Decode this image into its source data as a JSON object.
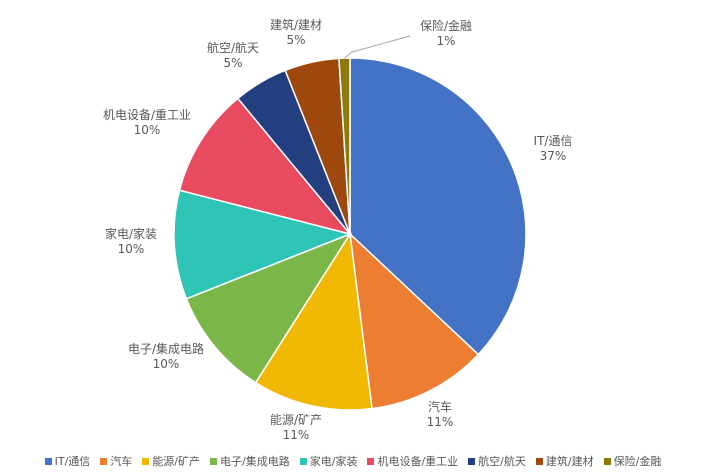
{
  "chart_data": {
    "type": "pie",
    "categories": [
      "IT/通信",
      "汽车",
      "能源/矿产",
      "电子/集成电路",
      "家电/家装",
      "机电设备/重工业",
      "航空/航天",
      "建筑/建材",
      "保险/金融"
    ],
    "values": [
      37,
      11,
      11,
      10,
      10,
      10,
      5,
      5,
      1
    ],
    "value_labels": [
      "37%",
      "11%",
      "11%",
      "10%",
      "10%",
      "10%",
      "5%",
      "5%",
      "1%"
    ],
    "colors": [
      "#4472C4",
      "#ED7D31",
      "#F0B800",
      "#7AB648",
      "#2EC4B6",
      "#E84A5F",
      "#243F7F",
      "#9E480E",
      "#8C7A0A"
    ],
    "legend_position": "bottom",
    "start_angle": "12 o'clock",
    "direction": "clockwise"
  }
}
